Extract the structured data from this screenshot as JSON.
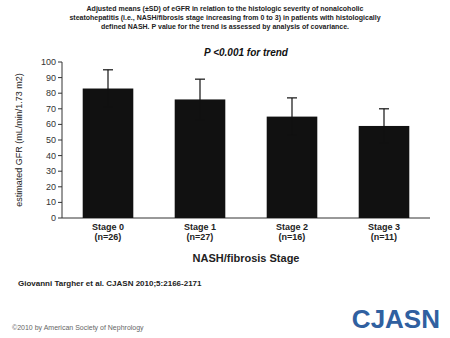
{
  "chart_data": {
    "type": "bar",
    "title": "Adjusted means (±SD) of eGFR in relation to the histologic severity of nonalcoholic\nsteatohepatitis (i.e., NASH/fibrosis stage increasing from 0 to 3) in patients with histologically\ndefined NASH. P value for the trend is assessed by analysis of covariance.",
    "categories": [
      "Stage 0\n(n=26)",
      "Stage 1\n(n=27)",
      "Stage 2\n(n=16)",
      "Stage 3\n(n=11)"
    ],
    "values": [
      83,
      76,
      65,
      59
    ],
    "errors": [
      12,
      13,
      12,
      11
    ],
    "color": "#111111",
    "xlabel": "NASH/fibrosis Stage",
    "ylabel": "estimated GFR (mL/min/1.73 m2)",
    "ylim": [
      0,
      100
    ],
    "yticks": [
      0,
      10,
      20,
      30,
      40,
      50,
      60,
      70,
      80,
      90,
      100
    ],
    "grid": false,
    "annotations": [
      "P <0.001 for trend",
      "Giovanni Targher et al. CJASN 2010;5:2166-2171",
      "©2010 by American Society of Nephrology",
      "CJASN"
    ]
  }
}
